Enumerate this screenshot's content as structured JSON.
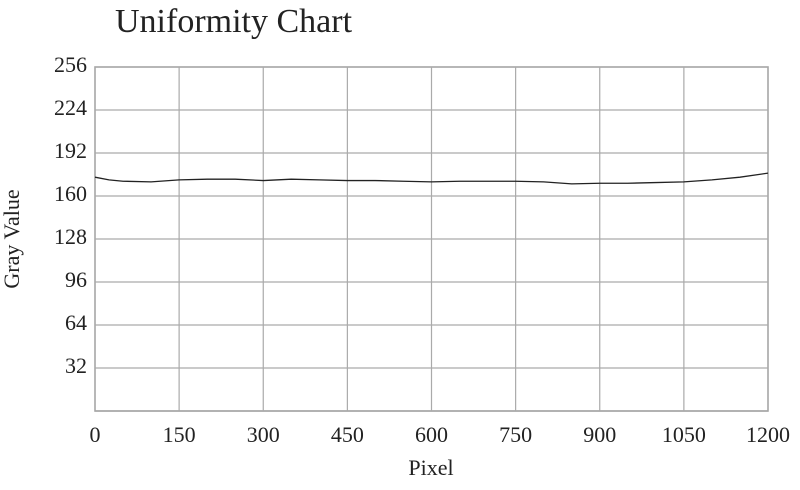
{
  "chart_data": {
    "type": "line",
    "title": "Uniformity Chart",
    "x_label": "Pixel",
    "y_label": "Gray Value",
    "x": [
      0,
      25,
      50,
      100,
      150,
      200,
      250,
      300,
      350,
      400,
      450,
      500,
      550,
      600,
      650,
      700,
      750,
      800,
      850,
      900,
      950,
      1000,
      1050,
      1100,
      1150,
      1200
    ],
    "series": [
      {
        "name": "Gray Value",
        "color": "#222222",
        "values": [
          174,
          172,
          171,
          170.5,
          172,
          172.5,
          172.5,
          171.5,
          172.5,
          172,
          171.5,
          171.5,
          171,
          170.5,
          171,
          171,
          171,
          170.5,
          169,
          169.5,
          169.5,
          170,
          170.5,
          172,
          174,
          177
        ]
      }
    ],
    "xlim": [
      0,
      1200
    ],
    "xticks": [
      0,
      150,
      300,
      450,
      600,
      750,
      900,
      1050,
      1200
    ],
    "ylim": [
      0,
      256
    ],
    "yticks": [
      32,
      64,
      96,
      128,
      160,
      192,
      224,
      256
    ],
    "grid": true
  }
}
